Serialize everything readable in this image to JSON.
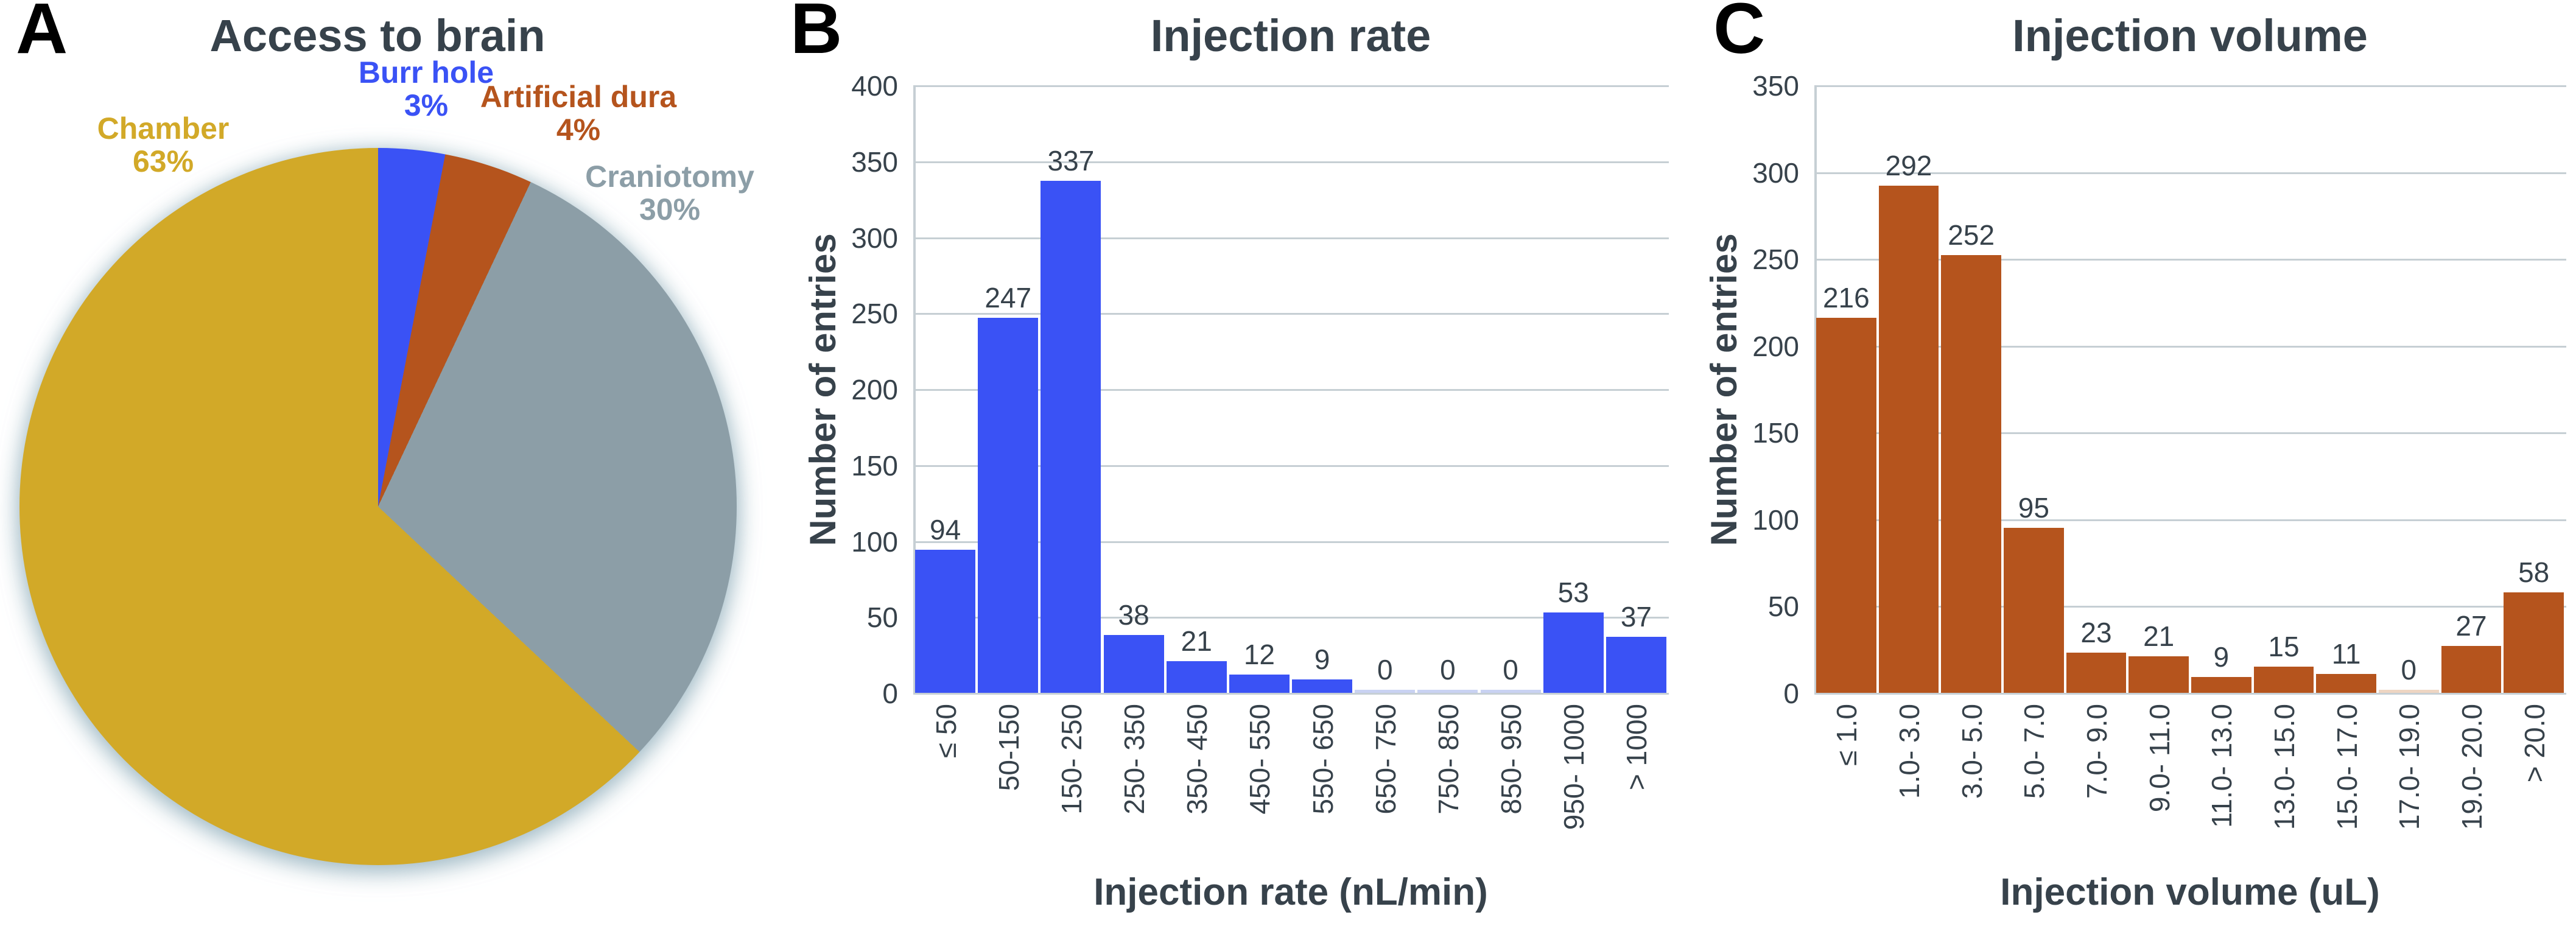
{
  "figure": {
    "panel_a": {
      "letter": "A",
      "title": "Access to brain"
    },
    "panel_b": {
      "letter": "B",
      "title": "Injection rate",
      "y_axis": "Number of entries",
      "x_axis": "Injection rate (nL/min)"
    },
    "panel_c": {
      "letter": "C",
      "title": "Injection volume",
      "y_axis": "Number of entries",
      "x_axis": "Injection volume (uL)"
    }
  },
  "colors": {
    "blue": "#3a52f5",
    "orange": "#b5541d",
    "gray": "#8c9ea7",
    "gold": "#d2a928",
    "text_dark": "#37424b",
    "gridline": "#c6cfd4",
    "zero_bar_blue": "#c9d2f2",
    "zero_bar_orange": "#eed5c2"
  },
  "chart_data": [
    {
      "type": "pie",
      "title": "Access to brain",
      "start_angle_deg": 0,
      "clockwise": true,
      "slices": [
        {
          "label": "Burr hole",
          "pct": 3,
          "pct_text": "3%",
          "color": "#3a52f5"
        },
        {
          "label": "Artificial dura",
          "pct": 4,
          "pct_text": "4%",
          "color": "#b5541d"
        },
        {
          "label": "Craniotomy",
          "pct": 30,
          "pct_text": "30%",
          "color": "#8c9ea7"
        },
        {
          "label": "Chamber",
          "pct": 63,
          "pct_text": "63%",
          "color": "#d2a928"
        }
      ]
    },
    {
      "type": "bar",
      "title": "Injection rate",
      "categories": [
        "≤ 50",
        "50-150",
        "150- 250",
        "250- 350",
        "350- 450",
        "450- 550",
        "550- 650",
        "650- 750",
        "750- 850",
        "850- 950",
        "950- 1000",
        "> 1000"
      ],
      "values": [
        94,
        247,
        337,
        38,
        21,
        12,
        9,
        0,
        0,
        0,
        53,
        37
      ],
      "xlabel": "Injection rate (nL/min)",
      "ylabel": "Number of entries",
      "ylim": [
        0,
        400
      ],
      "ytick_step": 50,
      "grid": true,
      "legend": "none",
      "bar_color": "#3a52f5",
      "zero_bar_color": "#c9d2f2"
    },
    {
      "type": "bar",
      "title": "Injection volume",
      "categories": [
        "≤ 1.0",
        "1.0- 3.0",
        "3.0- 5.0",
        "5.0- 7.0",
        "7.0- 9.0",
        "9.0- 11.0",
        "11.0- 13.0",
        "13.0- 15.0",
        "15.0- 17.0",
        "17.0- 19.0",
        "19.0- 20.0",
        "> 20.0"
      ],
      "values": [
        216,
        292,
        252,
        95,
        23,
        21,
        9,
        15,
        11,
        0,
        27,
        58
      ],
      "xlabel": "Injection volume (uL)",
      "ylabel": "Number of entries",
      "ylim": [
        0,
        350
      ],
      "ytick_step": 50,
      "grid": true,
      "legend": "none",
      "bar_color": "#b5541d",
      "zero_bar_color": "#eed5c2"
    }
  ]
}
